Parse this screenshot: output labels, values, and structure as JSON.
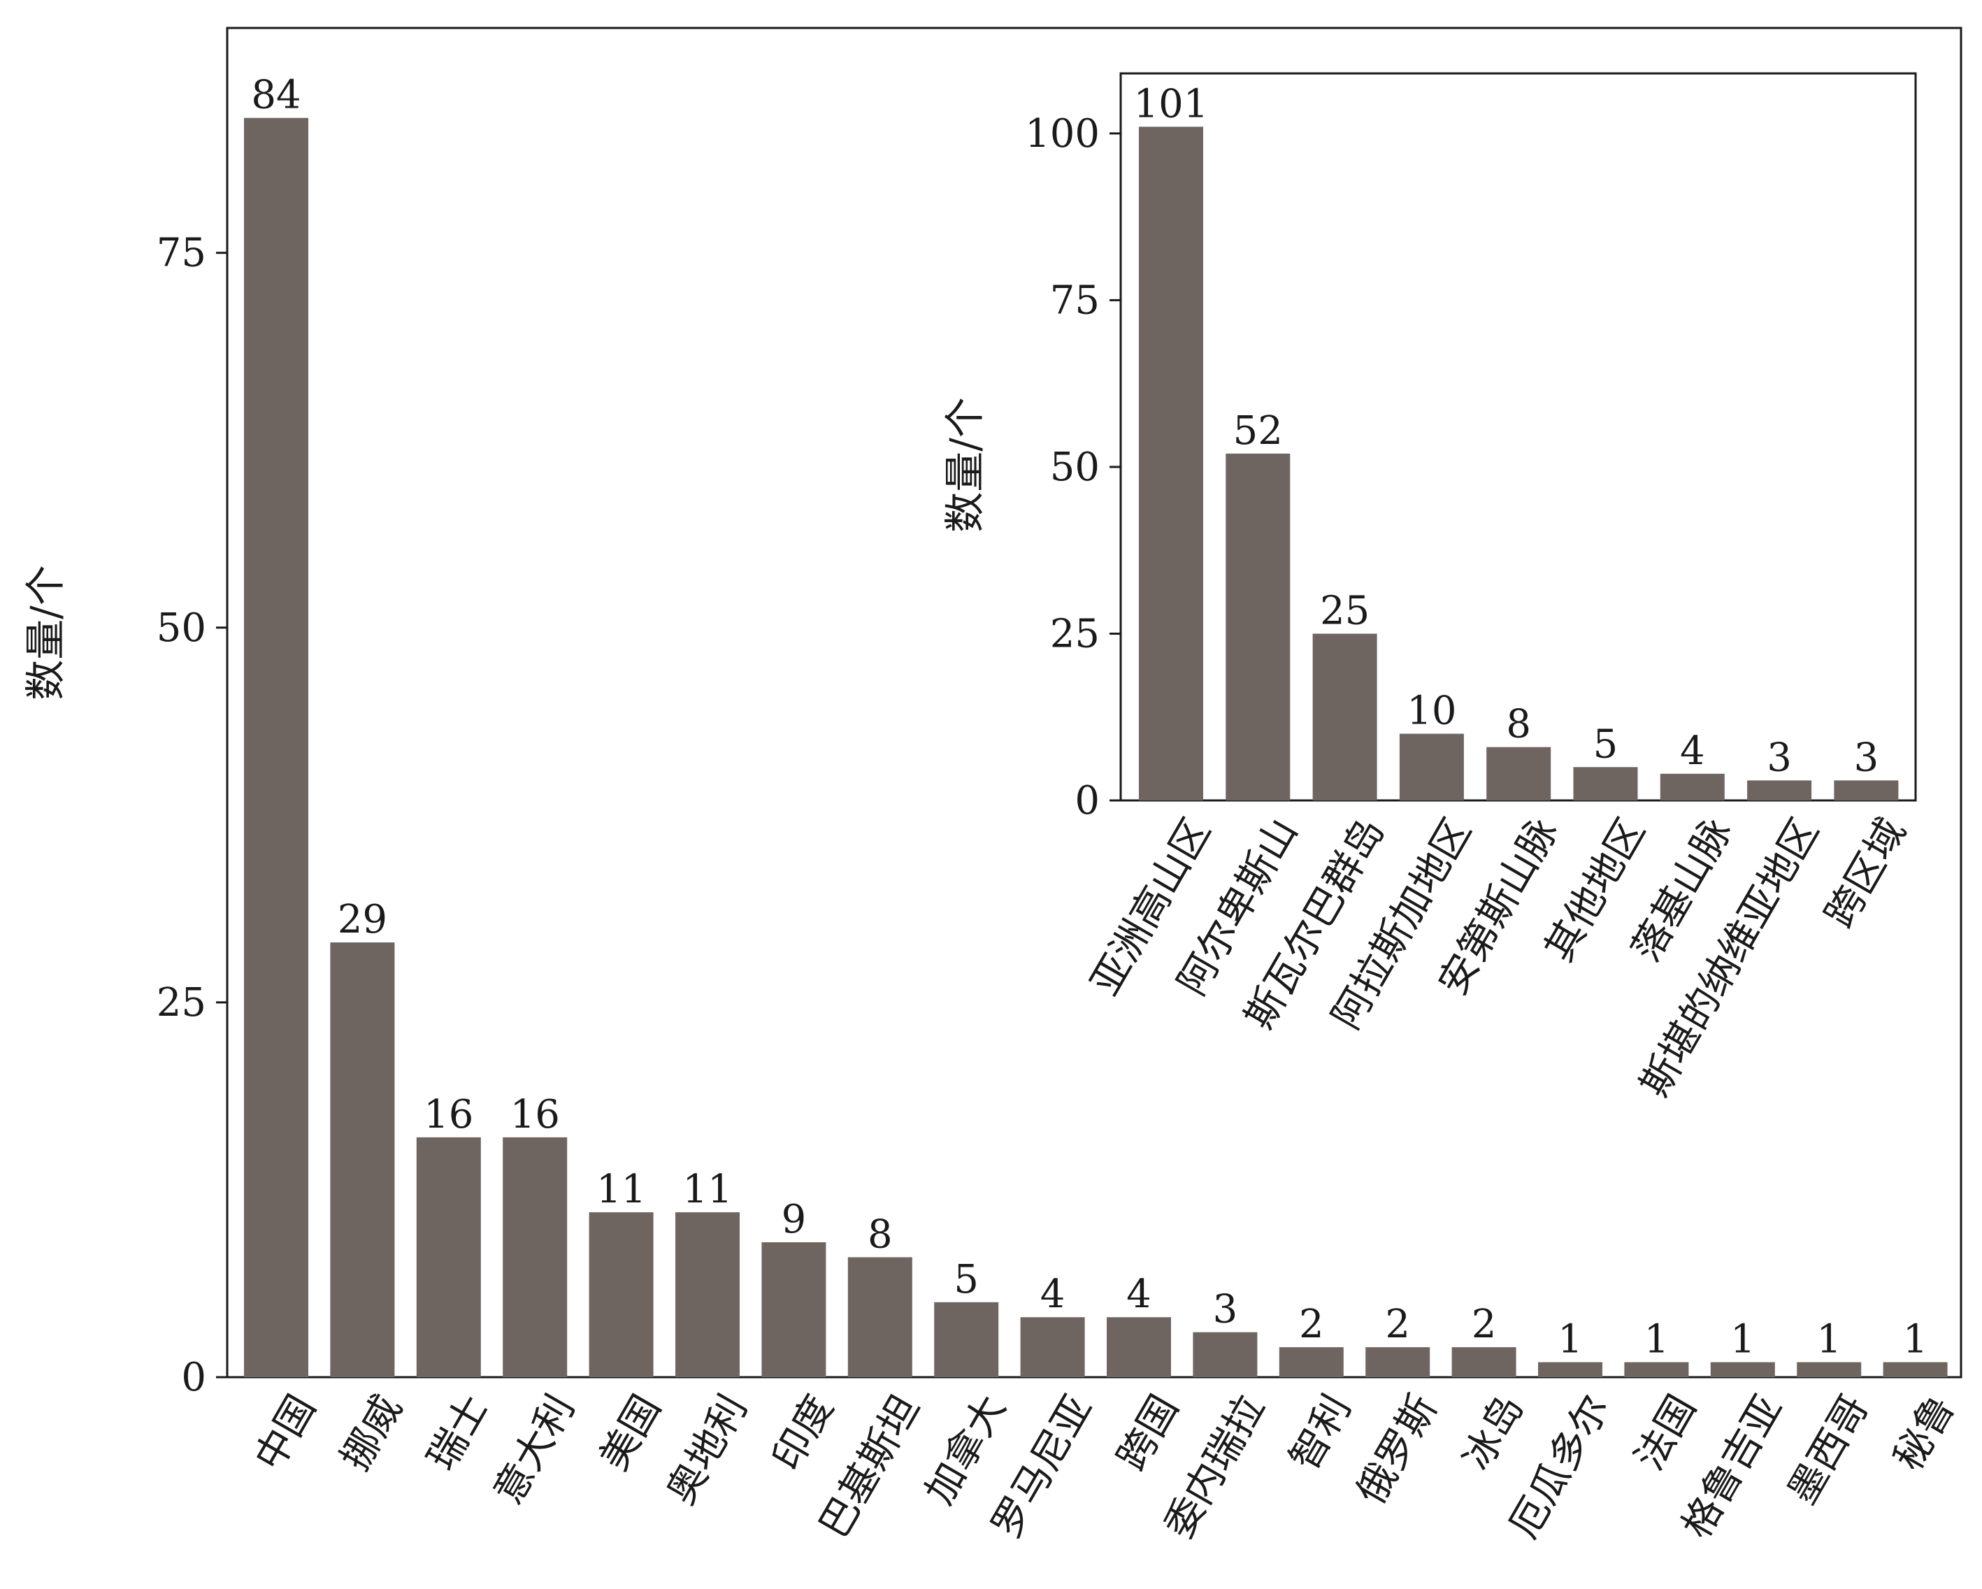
{
  "chart_data": [
    {
      "type": "bar",
      "ylabel": "数量/个",
      "ylim": [
        0,
        90
      ],
      "yticks": [
        0,
        25,
        50,
        75
      ],
      "categories": [
        "中国",
        "挪威",
        "瑞士",
        "意大利",
        "美国",
        "奥地利",
        "印度",
        "巴基斯坦",
        "加拿大",
        "罗马尼亚",
        "跨国",
        "委内瑞拉",
        "智利",
        "俄罗斯",
        "冰岛",
        "厄瓜多尔",
        "法国",
        "格鲁吉亚",
        "墨西哥",
        "秘鲁"
      ],
      "values": [
        84,
        29,
        16,
        16,
        11,
        11,
        9,
        8,
        5,
        4,
        4,
        3,
        2,
        2,
        2,
        1,
        1,
        1,
        1,
        1
      ],
      "bar_color": "#6e6561",
      "grid": false
    },
    {
      "type": "bar",
      "placement": "inset top-right",
      "ylabel": "数量/个",
      "ylim": [
        0,
        109
      ],
      "yticks": [
        0,
        25,
        50,
        75,
        100
      ],
      "categories": [
        "亚洲高山区",
        "阿尔卑斯山",
        "斯瓦尔巴群岛",
        "阿拉斯加地区",
        "安第斯山脉",
        "其他地区",
        "落基山脉",
        "斯堪的纳维亚地区",
        "跨区域"
      ],
      "values": [
        101,
        52,
        25,
        10,
        8,
        5,
        4,
        3,
        3
      ],
      "bar_color": "#6e6561",
      "grid": false
    }
  ]
}
